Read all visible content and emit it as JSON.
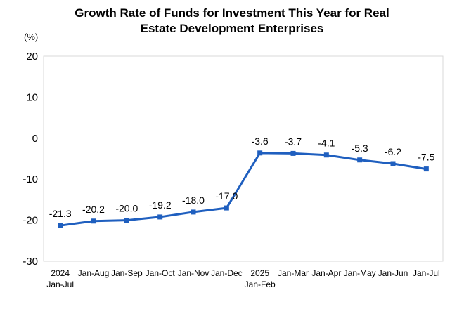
{
  "chart_data": {
    "type": "line",
    "title_lines": [
      "Growth Rate of Funds for Investment This Year for Real",
      "Estate Development Enterprises"
    ],
    "ylabel": "(%)",
    "ylim": [
      -30,
      20
    ],
    "yticks": [
      20,
      10,
      0,
      -10,
      -20,
      -30
    ],
    "grid": false,
    "legend": "none",
    "categories": [
      [
        "2024",
        "Jan-Jul"
      ],
      [
        "Jan-Aug"
      ],
      [
        "Jan-Sep"
      ],
      [
        "Jan-Oct"
      ],
      [
        "Jan-Nov"
      ],
      [
        "Jan-Dec"
      ],
      [
        "2025",
        "Jan-Feb"
      ],
      [
        "Jan-Mar"
      ],
      [
        "Jan-Apr"
      ],
      [
        "Jan-May"
      ],
      [
        "Jan-Jun"
      ],
      [
        "Jan-Jul"
      ]
    ],
    "values": [
      -21.3,
      -20.2,
      -20.0,
      -19.2,
      -18.0,
      -17.0,
      -3.6,
      -3.7,
      -4.1,
      -5.3,
      -6.2,
      -7.5
    ],
    "data_labels": [
      "-21.3",
      "-20.2",
      "-20.0",
      "-19.2",
      "-18.0",
      "-17.0",
      "-3.6",
      "-3.7",
      "-4.1",
      "-5.3",
      "-6.2",
      "-7.5"
    ],
    "line_color": "#1f5fbf"
  }
}
